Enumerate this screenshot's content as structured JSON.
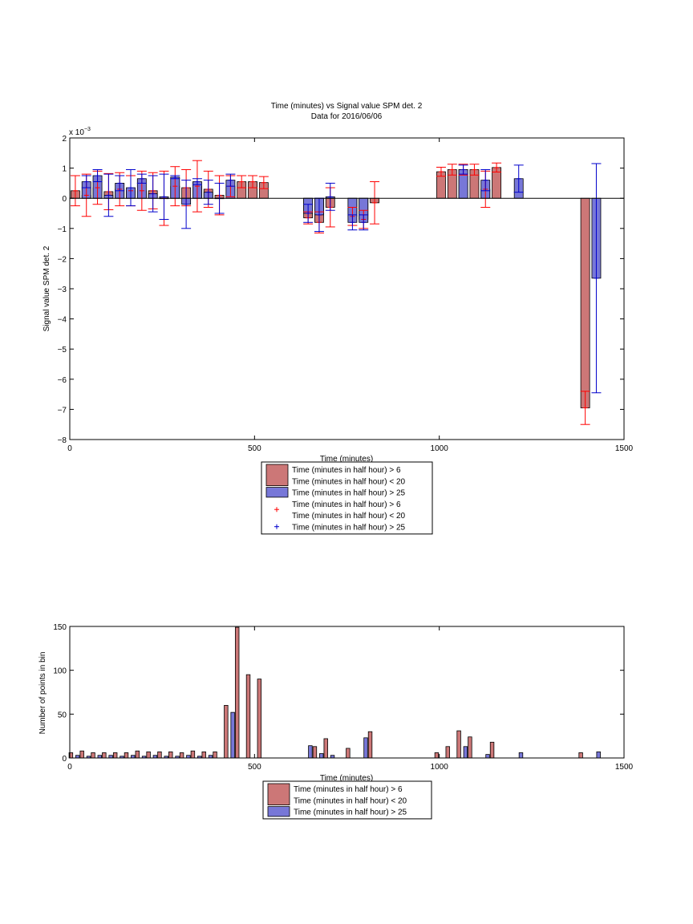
{
  "figure": {
    "bg_color": "#ffffff"
  },
  "chart_data": [
    {
      "type": "bar",
      "title": "Time (minutes) vs Signal value SPM det. 2",
      "subtitle": "Data for 2016/06/06",
      "xlabel": "Time (minutes)",
      "ylabel": "Signal value SPM det. 2",
      "y_exponent_label": "x 10",
      "y_exponent_power": "−3",
      "xlim": [
        0,
        1500
      ],
      "ylim": [
        -8,
        2
      ],
      "x_ticks": [
        0,
        500,
        1000,
        1500
      ],
      "x_tick_labels": [
        "0",
        "500",
        "1000",
        "1500"
      ],
      "y_ticks": [
        -8,
        -7,
        -6,
        -5,
        -4,
        -3,
        -2,
        -1,
        0,
        1,
        2
      ],
      "y_tick_labels": [
        "−8",
        "−7",
        "−6",
        "−5",
        "−4",
        "−3",
        "−2",
        "−1",
        "0",
        "1",
        "2"
      ],
      "bar_width": 24,
      "colors": {
        "red_fill": "#cc7777",
        "blue_fill": "#7777d8",
        "red_err": "#ff0000",
        "blue_err": "#0000cc"
      },
      "legend": {
        "placement": "below-axes",
        "entries": [
          {
            "lines": [
              "Time (minutes in half hour) > 6",
              "Time (minutes in half hour) < 20"
            ],
            "kind": "bar",
            "color": "#cc7777"
          },
          {
            "lines": [
              "Time (minutes in half hour) > 25"
            ],
            "kind": "bar",
            "color": "#7777d8"
          },
          {
            "lines": [
              "Time (minutes in half hour) > 6",
              "Time (minutes in half hour) < 20"
            ],
            "kind": "marker",
            "color": "#ff0000"
          },
          {
            "lines": [
              "Time (minutes in half hour) > 25"
            ],
            "kind": "marker",
            "color": "#0000cc"
          }
        ]
      },
      "series": [
        {
          "key": "red",
          "x": [
            15,
            45,
            75,
            105,
            135,
            165,
            195,
            225,
            255,
            285,
            315,
            345,
            375,
            405,
            435,
            465,
            495,
            525,
            645,
            675,
            705,
            765,
            795,
            825,
            1005,
            1035,
            1065,
            1095,
            1125,
            1155,
            1395
          ],
          "y": [
            0.25,
            0.1,
            0.35,
            0.22,
            0.3,
            0.25,
            0.25,
            0.25,
            0.0,
            0.4,
            0.35,
            0.4,
            0.3,
            0.1,
            0.4,
            0.55,
            0.55,
            0.52,
            -0.65,
            -0.8,
            -0.3,
            -0.6,
            -0.7,
            -0.15,
            0.88,
            0.95,
            0.95,
            0.95,
            0.3,
            1.02,
            -6.95
          ],
          "err": [
            0.5,
            0.7,
            0.55,
            0.6,
            0.55,
            0.5,
            0.65,
            0.6,
            0.9,
            0.65,
            0.6,
            0.85,
            0.6,
            0.65,
            0.35,
            0.2,
            0.2,
            0.2,
            0.2,
            0.35,
            0.65,
            0.3,
            0.3,
            0.7,
            0.15,
            0.18,
            0.18,
            0.18,
            0.6,
            0.15,
            0.55
          ]
        },
        {
          "key": "blue",
          "x": [
            45,
            75,
            105,
            135,
            165,
            195,
            225,
            255,
            285,
            315,
            345,
            375,
            405,
            435,
            645,
            675,
            705,
            765,
            795,
            1065,
            1125,
            1215,
            1425
          ],
          "y": [
            0.55,
            0.75,
            0.1,
            0.5,
            0.35,
            0.65,
            0.15,
            0.05,
            0.7,
            -0.2,
            0.55,
            0.2,
            0.0,
            0.6,
            -0.5,
            -0.55,
            0.05,
            -0.8,
            -0.8,
            0.95,
            0.6,
            0.65,
            -2.65
          ],
          "err": [
            0.2,
            0.2,
            0.7,
            0.25,
            0.6,
            0.15,
            0.6,
            0.75,
            0.05,
            0.8,
            0.1,
            0.4,
            0.5,
            0.2,
            0.3,
            0.55,
            0.45,
            0.25,
            0.25,
            0.15,
            0.35,
            0.45,
            3.8
          ]
        }
      ]
    },
    {
      "type": "bar",
      "xlabel": "Time (minutes)",
      "ylabel": "Number of points in bin",
      "xlim": [
        0,
        1500
      ],
      "ylim": [
        0,
        150
      ],
      "x_ticks": [
        0,
        500,
        1000,
        1500
      ],
      "x_tick_labels": [
        "0",
        "500",
        "1000",
        "1500"
      ],
      "y_ticks": [
        0,
        50,
        100,
        150
      ],
      "y_tick_labels": [
        "0",
        "50",
        "100",
        "150"
      ],
      "bar_width": 10,
      "colors": {
        "red_fill": "#cc7777",
        "blue_fill": "#7777d8"
      },
      "legend": {
        "placement": "below-axes",
        "entries": [
          {
            "lines": [
              "Time (minutes in half hour) > 6",
              "Time (minutes in half hour) < 20"
            ],
            "kind": "bar",
            "color": "#cc7777"
          },
          {
            "lines": [
              "Time (minutes in half hour) > 25"
            ],
            "kind": "bar",
            "color": "#7777d8"
          }
        ]
      },
      "series": [
        {
          "key": "red",
          "x": [
            3,
            33,
            63,
            93,
            123,
            153,
            183,
            213,
            243,
            273,
            303,
            333,
            363,
            393,
            423,
            453,
            483,
            513,
            663,
            693,
            753,
            813,
            993,
            1023,
            1053,
            1083,
            1143,
            1383
          ],
          "y": [
            6,
            8,
            6,
            6,
            6,
            6,
            8,
            7,
            7,
            7,
            6,
            8,
            7,
            7,
            60,
            149,
            95,
            90,
            13,
            22,
            11,
            30,
            6,
            13,
            31,
            24,
            18,
            6
          ]
        },
        {
          "key": "blue",
          "x": [
            21,
            51,
            81,
            111,
            141,
            171,
            201,
            231,
            261,
            291,
            321,
            351,
            381,
            441,
            651,
            681,
            711,
            801,
            1071,
            1131,
            1221,
            1431
          ],
          "y": [
            3,
            2,
            3,
            3,
            2,
            3,
            2,
            3,
            2,
            2,
            3,
            2,
            3,
            52,
            14,
            5,
            3,
            23,
            13,
            4,
            6,
            7
          ]
        }
      ]
    }
  ]
}
